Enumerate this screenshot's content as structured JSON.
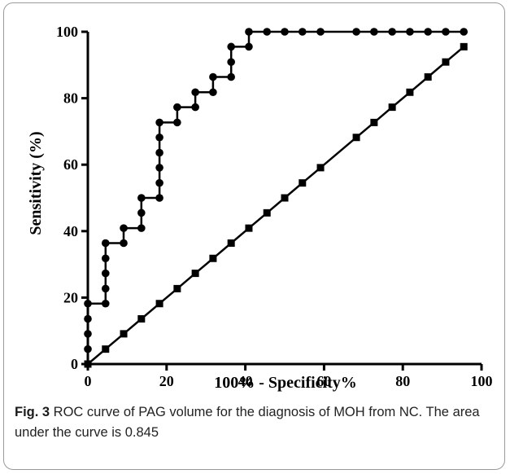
{
  "caption": {
    "label": "Fig. 3",
    "text": " ROC curve of PAG volume for the diagnosis of MOH from NC. The area under the curve is 0.845"
  },
  "chart_data": {
    "type": "line",
    "xlabel": "100% - Specificity%",
    "ylabel": "Sensitivity (%)",
    "xlim": [
      0,
      100
    ],
    "ylim": [
      0,
      100
    ],
    "xticks": [
      "0",
      "20",
      "40",
      "60",
      "80",
      "100"
    ],
    "yticks": [
      "0",
      "20",
      "40",
      "60",
      "80",
      "100"
    ],
    "grid": false,
    "legend": "none",
    "colors": {
      "line": "#000000",
      "axis": "#000000",
      "text": "#000000"
    },
    "series": [
      {
        "marker": "circle",
        "x": [
          0,
          0,
          0,
          0,
          0,
          4.5,
          4.5,
          4.5,
          4.5,
          4.5,
          9.1,
          9.1,
          13.6,
          13.6,
          13.6,
          18.2,
          18.2,
          18.2,
          18.2,
          18.2,
          18.2,
          22.7,
          22.7,
          27.3,
          27.3,
          31.8,
          31.8,
          36.4,
          36.4,
          36.4,
          40.9,
          40.9,
          45.5,
          50,
          54.5,
          59.1,
          68.2,
          72.7,
          77.3,
          81.8,
          86.4,
          90.9,
          95.5
        ],
        "y": [
          0,
          4.5,
          9.1,
          13.6,
          18.2,
          18.2,
          22.7,
          27.3,
          31.8,
          36.4,
          36.4,
          40.9,
          40.9,
          45.5,
          50,
          50,
          54.5,
          59.1,
          63.6,
          68.2,
          72.7,
          72.7,
          77.3,
          77.3,
          81.8,
          81.8,
          86.4,
          86.4,
          90.9,
          95.5,
          95.5,
          100,
          100,
          100,
          100,
          100,
          100,
          100,
          100,
          100,
          100,
          100,
          100
        ]
      },
      {
        "marker": "square",
        "x": [
          0,
          4.5,
          9.1,
          13.6,
          18.2,
          22.7,
          27.3,
          31.8,
          36.4,
          40.9,
          45.5,
          50,
          54.5,
          59.1,
          68.2,
          72.7,
          77.3,
          81.8,
          86.4,
          90.9,
          95.5
        ],
        "y": [
          0,
          4.5,
          9.1,
          13.6,
          18.2,
          22.7,
          27.3,
          31.8,
          36.4,
          40.9,
          45.5,
          50,
          54.5,
          59.1,
          68.2,
          72.7,
          77.3,
          81.8,
          86.4,
          90.9,
          95.5
        ]
      }
    ]
  }
}
